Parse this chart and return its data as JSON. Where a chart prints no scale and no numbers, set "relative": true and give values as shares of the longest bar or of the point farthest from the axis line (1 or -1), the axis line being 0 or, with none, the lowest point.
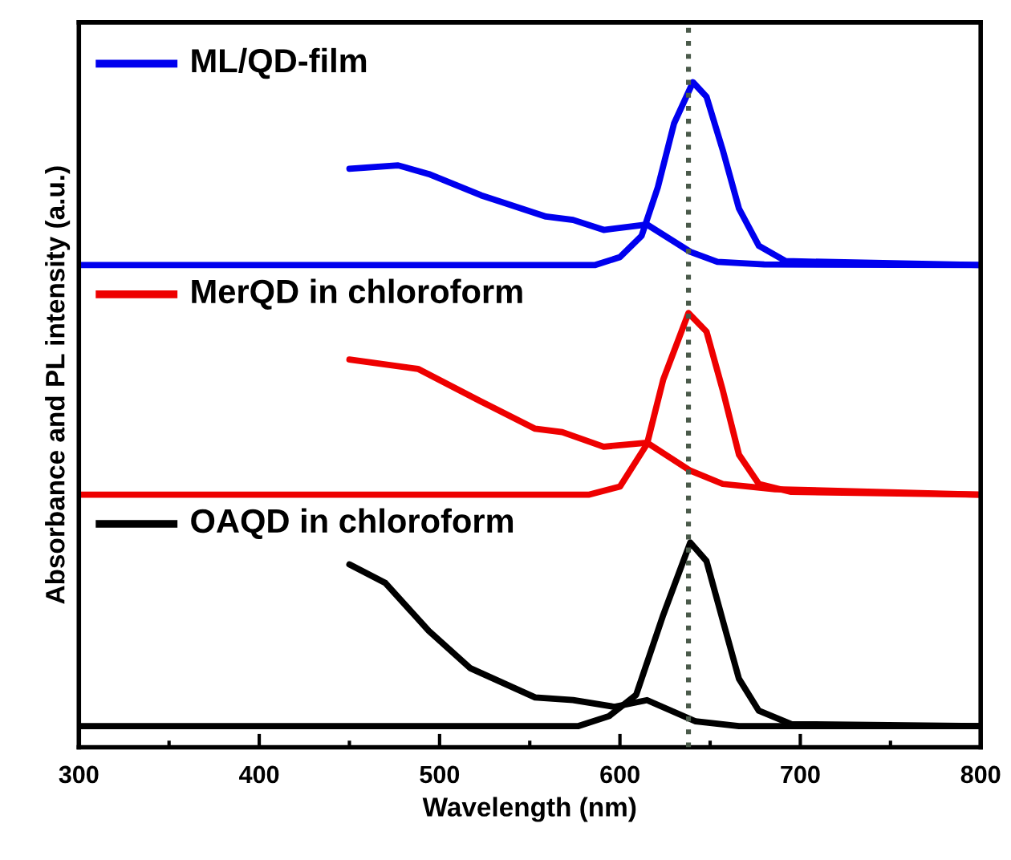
{
  "chart_data": {
    "type": "line",
    "relative": true,
    "xlabel": "Wavelength (nm)",
    "ylabel": "Absorbance and PL intensity (a.u.)",
    "xlim": [
      300,
      800
    ],
    "xticks": [
      300,
      400,
      500,
      600,
      700,
      800
    ],
    "grid": false,
    "legend": "top left",
    "marker": "none",
    "line_style": "solid",
    "ref_lines": [
      {
        "axis": "x",
        "value": 638,
        "color": "#4a5a4a",
        "line_style": "dotted"
      }
    ],
    "series": [
      {
        "name": "ML/QD-film",
        "color": "#0000ee",
        "x": [
          300,
          586,
          600,
          612,
          621,
          630,
          640.5,
          648,
          657,
          666,
          677,
          692,
          800
        ],
        "values": [
          0.725,
          0.725,
          0.737,
          0.769,
          0.842,
          0.938,
          1.0,
          0.978,
          0.898,
          0.81,
          0.754,
          0.731,
          0.725
        ]
      },
      {
        "color": "#0000ee",
        "x": [
          450,
          477,
          494,
          523,
          559,
          574,
          591,
          615,
          639,
          654,
          680,
          800
        ],
        "values": [
          0.87,
          0.875,
          0.862,
          0.83,
          0.798,
          0.793,
          0.778,
          0.786,
          0.745,
          0.73,
          0.726,
          0.725
        ]
      },
      {
        "name": "MerQD in chloroform",
        "color": "#ee0000",
        "x": [
          300,
          583,
          600,
          615,
          624,
          638,
          648,
          657,
          666,
          677,
          695,
          800
        ],
        "values": [
          0.38,
          0.38,
          0.392,
          0.456,
          0.553,
          0.653,
          0.625,
          0.537,
          0.44,
          0.396,
          0.384,
          0.38
        ]
      },
      {
        "color": "#ee0000",
        "x": [
          450,
          488,
          523,
          553,
          568,
          591,
          615,
          639,
          657,
          686,
          800
        ],
        "values": [
          0.583,
          0.569,
          0.52,
          0.479,
          0.474,
          0.452,
          0.458,
          0.416,
          0.396,
          0.388,
          0.38
        ]
      },
      {
        "name": "OAQD in chloroform",
        "color": "#000000",
        "x": [
          300,
          577,
          594,
          609,
          624,
          639,
          648,
          657,
          666,
          677,
          695,
          800
        ],
        "values": [
          0.032,
          0.032,
          0.047,
          0.079,
          0.199,
          0.308,
          0.28,
          0.191,
          0.103,
          0.055,
          0.035,
          0.032
        ]
      },
      {
        "color": "#000000",
        "x": [
          450,
          470,
          494,
          517,
          553,
          574,
          597,
          615,
          642,
          666,
          800
        ],
        "values": [
          0.275,
          0.247,
          0.175,
          0.119,
          0.075,
          0.071,
          0.061,
          0.071,
          0.039,
          0.032,
          0.032
        ]
      }
    ]
  }
}
